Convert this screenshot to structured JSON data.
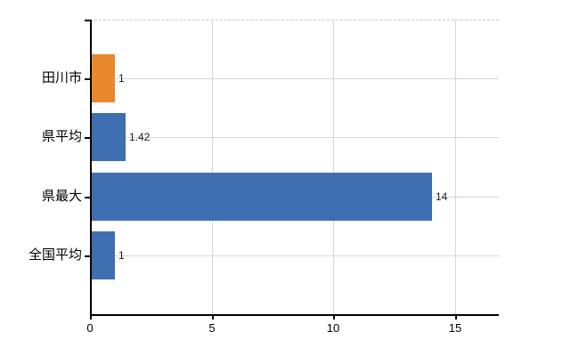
{
  "chart_data": {
    "type": "bar",
    "orientation": "horizontal",
    "title": "",
    "xlabel": "",
    "ylabel": "",
    "categories": [
      "田川市",
      "県平均",
      "県最大",
      "全国平均"
    ],
    "values": [
      1,
      1.42,
      14,
      1
    ],
    "value_labels": [
      "1",
      "1.42",
      "14",
      "1"
    ],
    "bar_colors": [
      "#ea8830",
      "#3f6fb0",
      "#3f6fb0",
      "#3f6fb0"
    ],
    "xlim": [
      0,
      16.8
    ],
    "xticks": [
      0,
      5,
      10,
      15
    ],
    "xtick_labels": [
      "0",
      "5",
      "10",
      "15"
    ],
    "grid": true,
    "legend_position": "none"
  },
  "colors": {
    "background": "#ffffff",
    "axis": "#000000",
    "vertical_gridline": "#d7d7d7",
    "horizontal_gridline": "#d5dad5",
    "plot_top_border": "#c9c9c9",
    "text": "#000000",
    "orange_series": "#ea8830",
    "blue_series": "#3f6fb0"
  }
}
